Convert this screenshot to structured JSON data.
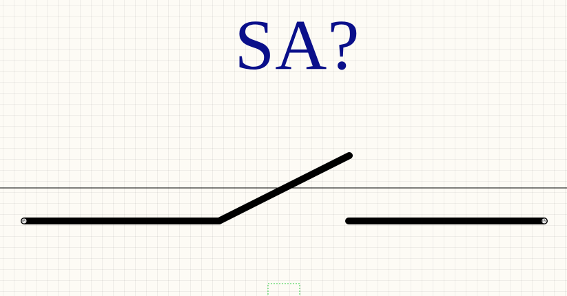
{
  "component": {
    "designator": "SA?",
    "symbol_icon": "switch-open-icon"
  },
  "colors": {
    "background": "#fdfbf5",
    "grid": "#e8e6df",
    "designator": "#0a0f8a",
    "wire": "#000000",
    "crosshair": "#000000",
    "selection_box": "#2ecc40"
  }
}
